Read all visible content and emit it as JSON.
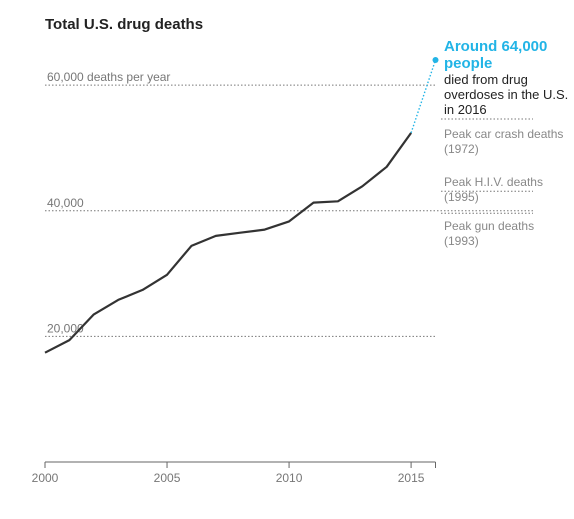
{
  "chart_data": {
    "type": "line",
    "title": "Total U.S. drug deaths",
    "xlabel": "",
    "ylabel": "",
    "x": [
      2000,
      2001,
      2002,
      2003,
      2004,
      2005,
      2006,
      2007,
      2008,
      2009,
      2010,
      2011,
      2012,
      2013,
      2014,
      2015
    ],
    "series": [
      {
        "values": [
          17400,
          19400,
          23500,
          25800,
          27400,
          29800,
          34400,
          36000,
          36500,
          37000,
          38300,
          41300,
          41500,
          43900,
          47000,
          52400
        ]
      }
    ],
    "projection": {
      "from": [
        2015,
        52400
      ],
      "to": [
        2016,
        64000
      ],
      "style": "dotted",
      "color": "#22b4e6"
    },
    "xlim": [
      2000,
      2016
    ],
    "ylim": [
      0,
      64000
    ],
    "xticks": [
      "2000",
      "2005",
      "2010",
      "2015"
    ],
    "gridlines": [
      {
        "value": 60000,
        "label": "60,000 deaths per year",
        "x_end": 2016
      },
      {
        "value": 40000,
        "label": "40,000",
        "x_end": 2020
      },
      {
        "value": 20000,
        "label": "20,000",
        "x_end": 2016
      }
    ],
    "reference_lines": [
      {
        "value": 54600,
        "label": "Peak car crash deaths (1972)"
      },
      {
        "value": 43100,
        "label": "Peak H.I.V. deaths (1995)"
      },
      {
        "value": 39600,
        "label": "Peak gun deaths (1993)"
      }
    ],
    "highlight": {
      "headline": "Around 64,000 people",
      "text": "died from drug overdoses in the U.S. in 2016",
      "color": "#22b4e6"
    },
    "line_color": "#333333",
    "grid": true
  }
}
